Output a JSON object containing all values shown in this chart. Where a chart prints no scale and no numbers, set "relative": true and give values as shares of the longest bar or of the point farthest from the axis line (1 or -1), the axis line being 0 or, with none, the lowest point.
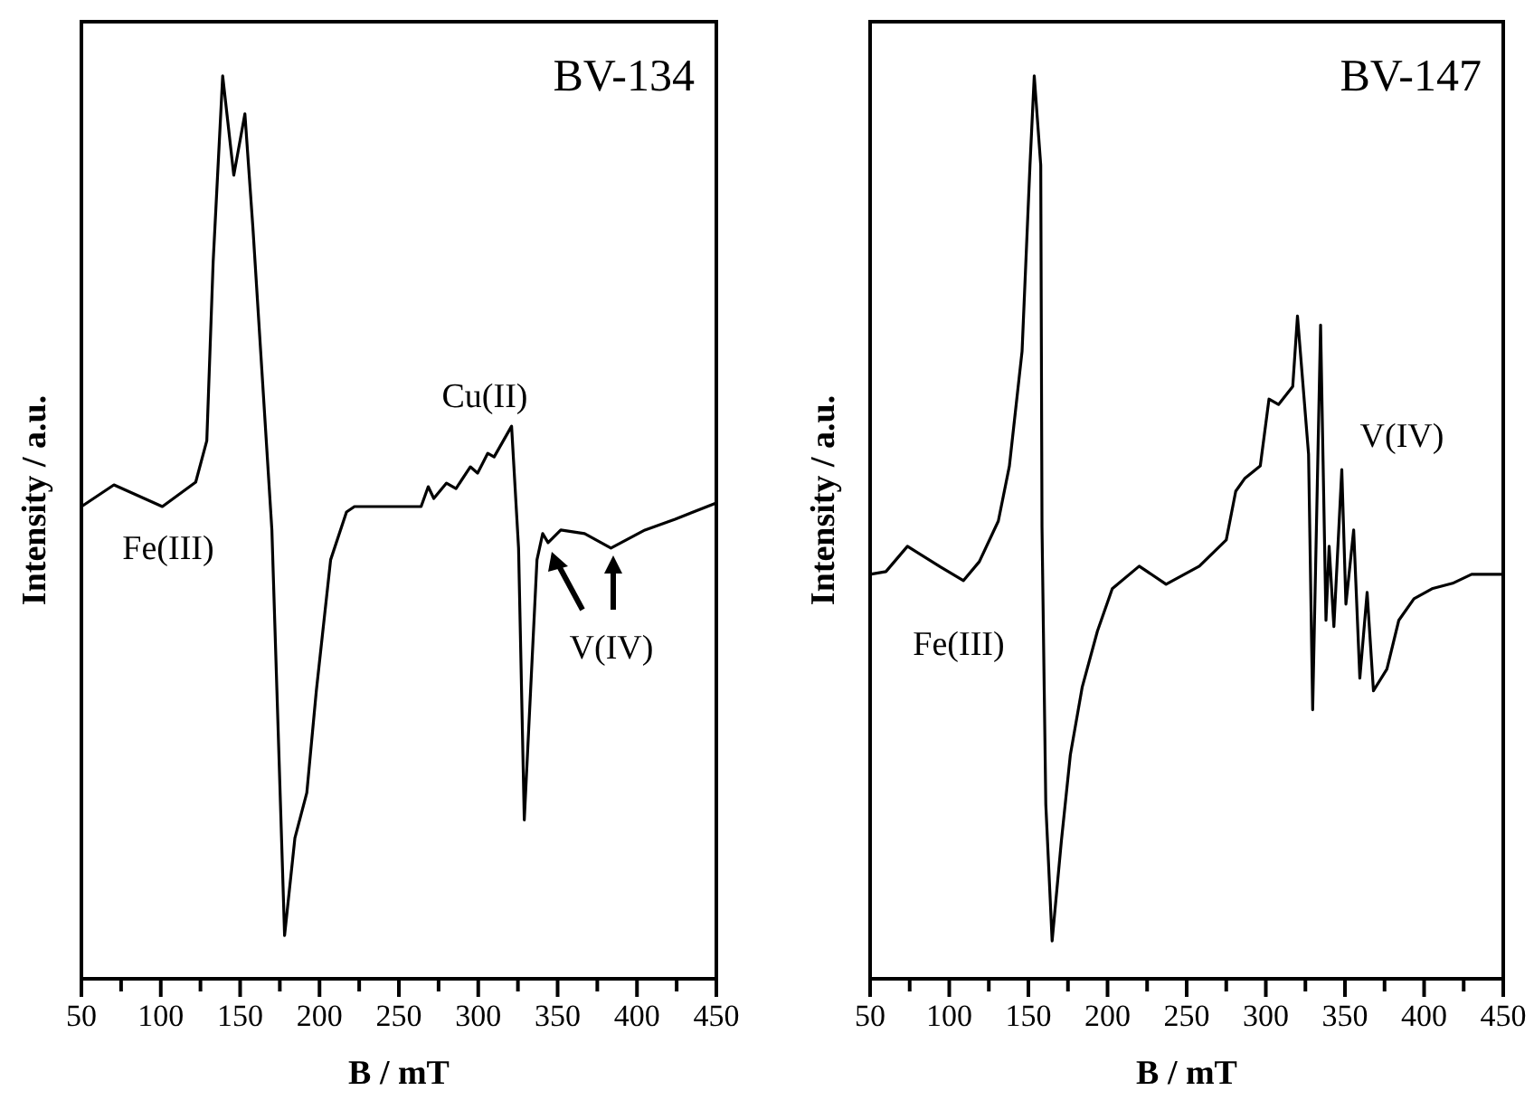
{
  "chart_data": [
    {
      "type": "line",
      "title": "BV-134",
      "xlabel": "B / mT",
      "ylabel": "Intensity / a.u.",
      "relative": true,
      "tick_labels": "x",
      "grid": false,
      "marker": "none",
      "line_style": "solid",
      "xlim": [
        50,
        450
      ],
      "xticks": [
        50,
        {
          "value": 75,
          "label": null
        },
        100,
        {
          "value": 125,
          "label": null
        },
        150,
        {
          "value": 175,
          "label": null
        },
        200,
        {
          "value": 225,
          "label": null
        },
        250,
        {
          "value": 275,
          "label": null
        },
        300,
        {
          "value": 325,
          "label": null
        },
        350,
        {
          "value": 375,
          "label": null
        },
        400,
        {
          "value": 425,
          "label": null
        },
        450
      ],
      "annotations": [
        "Fe(III)",
        "Cu(II)",
        "V(IV)"
      ],
      "series": [
        {
          "color": "#000000",
          "x": [
            50,
            70.5,
            101,
            122,
            129,
            133,
            139,
            146,
            153,
            158,
            170,
            178,
            184.5,
            192,
            198,
            207,
            217,
            222,
            264,
            268.5,
            272,
            280,
            286,
            295,
            299.6,
            306,
            310,
            321,
            325.4,
            329,
            337,
            340.6,
            344,
            352,
            367,
            383.6,
            405,
            424,
            450
          ],
          "values": [
            0.523,
            0.547,
            0.523,
            0.55,
            0.596,
            0.794,
            1,
            0.89,
            0.958,
            0.833,
            0.497,
            0.048,
            0.156,
            0.206,
            0.319,
            0.464,
            0.517,
            0.523,
            0.523,
            0.545,
            0.532,
            0.549,
            0.543,
            0.567,
            0.56,
            0.582,
            0.578,
            0.612,
            0.477,
            0.176,
            0.464,
            0.493,
            0.483,
            0.497,
            0.493,
            0.477,
            0.497,
            0.509,
            0.527
          ]
        }
      ]
    },
    {
      "type": "line",
      "title": "BV-147",
      "xlabel": "B / mT",
      "ylabel": "Intensity / a.u.",
      "relative": true,
      "tick_labels": "x",
      "grid": false,
      "marker": "none",
      "line_style": "solid",
      "xlim": [
        50,
        450
      ],
      "xticks": [
        50,
        {
          "value": 75,
          "label": null
        },
        100,
        {
          "value": 125,
          "label": null
        },
        150,
        {
          "value": 175,
          "label": null
        },
        200,
        {
          "value": 225,
          "label": null
        },
        250,
        {
          "value": 275,
          "label": null
        },
        300,
        {
          "value": 325,
          "label": null
        },
        350,
        {
          "value": 375,
          "label": null
        },
        400,
        {
          "value": 425,
          "label": null
        },
        450
      ],
      "annotations": [
        "Fe(III)",
        "V(IV)"
      ],
      "series": [
        {
          "color": "#000000",
          "x": [
            50,
            60,
            73.6,
            94.6,
            109,
            119,
            131,
            138,
            146,
            151,
            153.7,
            157.8,
            158.6,
            161,
            165,
            170.8,
            176.5,
            184,
            193.6,
            203,
            220,
            237,
            258,
            275,
            281,
            286.6,
            296.5,
            302,
            308,
            317,
            320,
            327,
            329.6,
            334.6,
            338,
            340,
            343,
            348,
            350.6,
            355.5,
            359.4,
            364,
            368,
            376.5,
            384,
            393.6,
            405,
            418,
            430,
            450
          ],
          "values": [
            0.448,
            0.451,
            0.479,
            0.456,
            0.441,
            0.462,
            0.507,
            0.568,
            0.695,
            0.901,
            1,
            0.901,
            0.5,
            0.193,
            0.042,
            0.152,
            0.248,
            0.323,
            0.385,
            0.432,
            0.457,
            0.437,
            0.457,
            0.486,
            0.54,
            0.554,
            0.568,
            0.642,
            0.636,
            0.656,
            0.734,
            0.581,
            0.298,
            0.724,
            0.397,
            0.479,
            0.39,
            0.564,
            0.415,
            0.497,
            0.333,
            0.428,
            0.319,
            0.343,
            0.397,
            0.421,
            0.432,
            0.438,
            0.448,
            0.448
          ]
        }
      ]
    }
  ]
}
